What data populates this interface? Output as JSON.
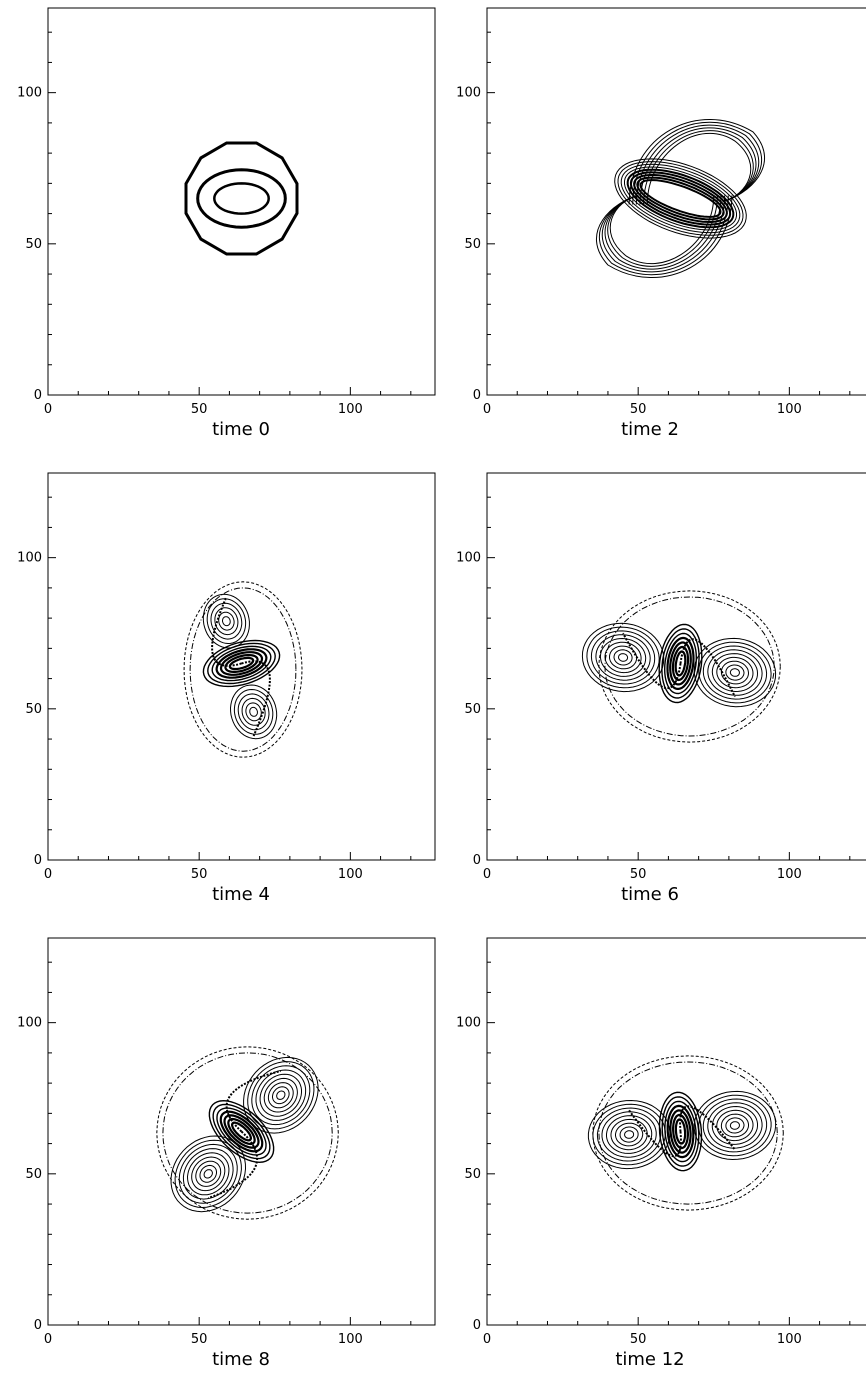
{
  "chart_data": [
    {
      "type": "contour",
      "title": "time 0",
      "xlim": [
        0,
        128
      ],
      "ylim": [
        0,
        128
      ],
      "xticks": [
        0,
        50,
        100
      ],
      "yticks": [
        0,
        50,
        100
      ],
      "grid": false,
      "feature": {
        "kind": "ring",
        "center": [
          64,
          65
        ],
        "outer_radius": 19,
        "inner_radius": 12,
        "aspect": 1.0
      }
    },
    {
      "type": "contour",
      "title": "time 2",
      "xlim": [
        0,
        128
      ],
      "ylim": [
        0,
        128
      ],
      "xticks": [
        0,
        50,
        100
      ],
      "yticks": [
        0,
        50,
        100
      ],
      "grid": false,
      "feature": {
        "kind": "s-shape",
        "center": [
          64,
          65
        ],
        "core": [
          64,
          65
        ],
        "extent_x": [
          47,
          92
        ],
        "extent_y": [
          41,
          88
        ]
      }
    },
    {
      "type": "contour",
      "title": "time 4",
      "xlim": [
        0,
        128
      ],
      "ylim": [
        0,
        128
      ],
      "xticks": [
        0,
        50,
        100
      ],
      "yticks": [
        0,
        50,
        100
      ],
      "grid": false,
      "feature": {
        "kind": "vortex-pair",
        "center": [
          64,
          65
        ],
        "vortices": [
          [
            59,
            79
          ],
          [
            68,
            49
          ]
        ],
        "extent_x": [
          45,
          84
        ],
        "extent_y": [
          34,
          92
        ]
      }
    },
    {
      "type": "contour",
      "title": "time 6",
      "xlim": [
        0,
        128
      ],
      "ylim": [
        0,
        128
      ],
      "xticks": [
        0,
        50,
        100
      ],
      "yticks": [
        0,
        50,
        100
      ],
      "grid": false,
      "feature": {
        "kind": "vortex-pair",
        "center": [
          64,
          65
        ],
        "vortices": [
          [
            45,
            67
          ],
          [
            82,
            62
          ]
        ],
        "extent_x": [
          37,
          97
        ],
        "extent_y": [
          39,
          89
        ]
      }
    },
    {
      "type": "contour",
      "title": "time 8",
      "xlim": [
        0,
        128
      ],
      "ylim": [
        0,
        128
      ],
      "xticks": [
        0,
        50,
        100
      ],
      "yticks": [
        0,
        50,
        100
      ],
      "grid": false,
      "feature": {
        "kind": "vortex-pair",
        "center": [
          64,
          64
        ],
        "vortices": [
          [
            77,
            76
          ],
          [
            53,
            50
          ]
        ],
        "extent_x": [
          36,
          96
        ],
        "extent_y": [
          35,
          92
        ]
      }
    },
    {
      "type": "contour",
      "title": "time 12",
      "xlim": [
        0,
        128
      ],
      "ylim": [
        0,
        128
      ],
      "xticks": [
        0,
        50,
        100
      ],
      "yticks": [
        0,
        50,
        100
      ],
      "grid": false,
      "feature": {
        "kind": "vortex-pair",
        "center": [
          64,
          64
        ],
        "vortices": [
          [
            47,
            63
          ],
          [
            82,
            66
          ]
        ],
        "extent_x": [
          35,
          98
        ],
        "extent_y": [
          38,
          89
        ]
      }
    }
  ]
}
